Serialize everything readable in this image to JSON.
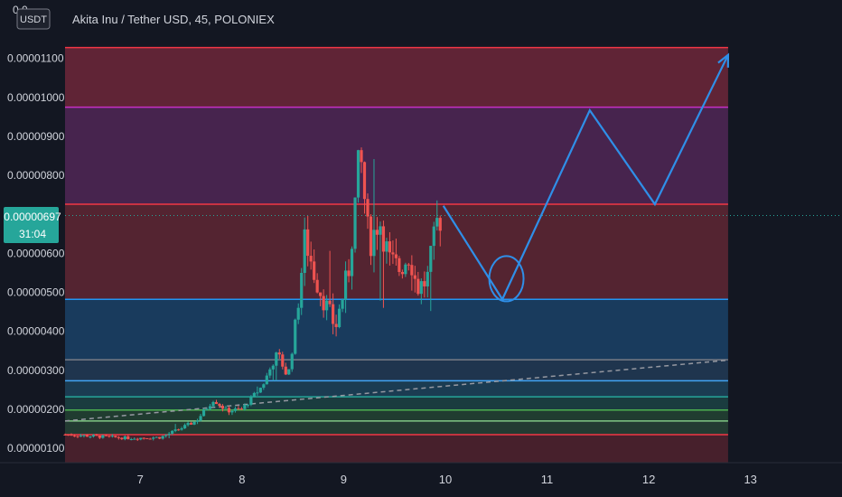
{
  "header": {
    "title": "Akita Inu / Tether USD, 45, POLONIEX",
    "currency_badge": "USDT",
    "top_left_clip": "0.0"
  },
  "price_marker": {
    "price": "0.00000697",
    "countdown": "31:04"
  },
  "colors": {
    "background": "#131722",
    "axis_text": "#d1d4dc",
    "candle_up": "#26a69a",
    "candle_down": "#ef5350",
    "drawing_blue": "#2f8fe8",
    "marker_bg": "#26a69a"
  },
  "chart_data": {
    "type": "candlestick",
    "title": "Akita Inu / Tether USD, 45, POLONIEX",
    "ylim": [
      6.3e-07,
      1.25e-05
    ],
    "xlim": [
      6.26,
      13.9
    ],
    "y_ticks": [
      "0.00001100",
      "0.00001000",
      "0.00000900",
      "0.00000800",
      "0.00000600",
      "0.00000500",
      "0.00000400",
      "0.00000300",
      "0.00000200",
      "0.00000100"
    ],
    "y_tick_values": [
      1.1e-05,
      1e-05,
      9e-06,
      8e-06,
      6e-06,
      5e-06,
      4e-06,
      3e-06,
      2e-06,
      1e-06
    ],
    "x_ticks": [
      "7",
      "8",
      "9",
      "10",
      "11",
      "12",
      "13"
    ],
    "x_tick_values": [
      7,
      8,
      9,
      10,
      11,
      12,
      13
    ],
    "last_price": 6.97e-06,
    "fib_levels": [
      {
        "price": 1.128e-05,
        "color": "#f23645"
      },
      {
        "price": 9.75e-06,
        "color": "#c62fc6"
      },
      {
        "price": 7.26e-06,
        "color": "#f23645"
      },
      {
        "price": 4.82e-06,
        "color": "#2196f3"
      },
      {
        "price": 3.27e-06,
        "color": "#787b86"
      },
      {
        "price": 2.73e-06,
        "color": "#42a5f5"
      },
      {
        "price": 2.32e-06,
        "color": "#26a69a"
      },
      {
        "price": 1.98e-06,
        "color": "#4caf50"
      },
      {
        "price": 1.7e-06,
        "color": "#81c784"
      },
      {
        "price": 1.35e-06,
        "color": "#f23645"
      }
    ],
    "fib_zones": [
      {
        "top": 1.128e-05,
        "bottom": 9.75e-06,
        "color": "#7b2a3e"
      },
      {
        "top": 9.75e-06,
        "bottom": 7.26e-06,
        "color": "#5a2a5e"
      },
      {
        "top": 7.26e-06,
        "bottom": 4.82e-06,
        "color": "#6b2a37"
      },
      {
        "top": 4.82e-06,
        "bottom": 3.27e-06,
        "color": "#1c4872"
      },
      {
        "top": 3.27e-06,
        "bottom": 2.73e-06,
        "color": "#24405e"
      },
      {
        "top": 2.73e-06,
        "bottom": 2.32e-06,
        "color": "#1f4a63"
      },
      {
        "top": 2.32e-06,
        "bottom": 1.98e-06,
        "color": "#1d4a4a"
      },
      {
        "top": 1.98e-06,
        "bottom": 1.7e-06,
        "color": "#254a36"
      },
      {
        "top": 1.7e-06,
        "bottom": 1.35e-06,
        "color": "#2a4838"
      },
      {
        "top": 1.35e-06,
        "bottom": 6.3e-07,
        "color": "#5a2430"
      }
    ],
    "fib_x_range": [
      6.26,
      12.78
    ],
    "trendline": {
      "x1": 6.26,
      "y1": 1.7e-06,
      "x2": 12.78,
      "y2": 3.26e-06
    },
    "projection_path": [
      {
        "x": 9.98,
        "y": 7.22e-06
      },
      {
        "x": 10.56,
        "y": 4.82e-06
      },
      {
        "x": 11.42,
        "y": 9.67e-06
      },
      {
        "x": 12.06,
        "y": 7.26e-06
      },
      {
        "x": 12.78,
        "y": 1.109e-05
      }
    ],
    "projection_circle": {
      "x": 10.6,
      "y": 5.35e-06
    },
    "candle_keypoints": [
      {
        "t": 6.26,
        "p": 1.35e-06
      },
      {
        "t": 6.6,
        "p": 1.3e-06
      },
      {
        "t": 6.9,
        "p": 1.26e-06
      },
      {
        "t": 7.2,
        "p": 1.28e-06
      },
      {
        "t": 7.35,
        "p": 1.45e-06
      },
      {
        "t": 7.55,
        "p": 1.7e-06
      },
      {
        "t": 7.72,
        "p": 2.25e-06
      },
      {
        "t": 7.85,
        "p": 1.96e-06
      },
      {
        "t": 8.0,
        "p": 2e-06
      },
      {
        "t": 8.2,
        "p": 2.6e-06
      },
      {
        "t": 8.35,
        "p": 3.45e-06
      },
      {
        "t": 8.45,
        "p": 2.8e-06
      },
      {
        "t": 8.52,
        "p": 4e-06
      },
      {
        "t": 8.62,
        "p": 6.4e-06
      },
      {
        "t": 8.72,
        "p": 5.4e-06
      },
      {
        "t": 8.82,
        "p": 4.7e-06
      },
      {
        "t": 8.92,
        "p": 4.1e-06
      },
      {
        "t": 9.05,
        "p": 5.6e-06
      },
      {
        "t": 9.16,
        "p": 8.6e-06
      },
      {
        "t": 9.25,
        "p": 6.2e-06
      },
      {
        "t": 9.35,
        "p": 6.9e-06
      },
      {
        "t": 9.45,
        "p": 5.8e-06
      },
      {
        "t": 9.55,
        "p": 5.6e-06
      },
      {
        "t": 9.65,
        "p": 6e-06
      },
      {
        "t": 9.72,
        "p": 5.1e-06
      },
      {
        "t": 9.82,
        "p": 5.3e-06
      },
      {
        "t": 9.92,
        "p": 6.8e-06
      },
      {
        "t": 9.97,
        "p": 6.97e-06
      }
    ]
  }
}
